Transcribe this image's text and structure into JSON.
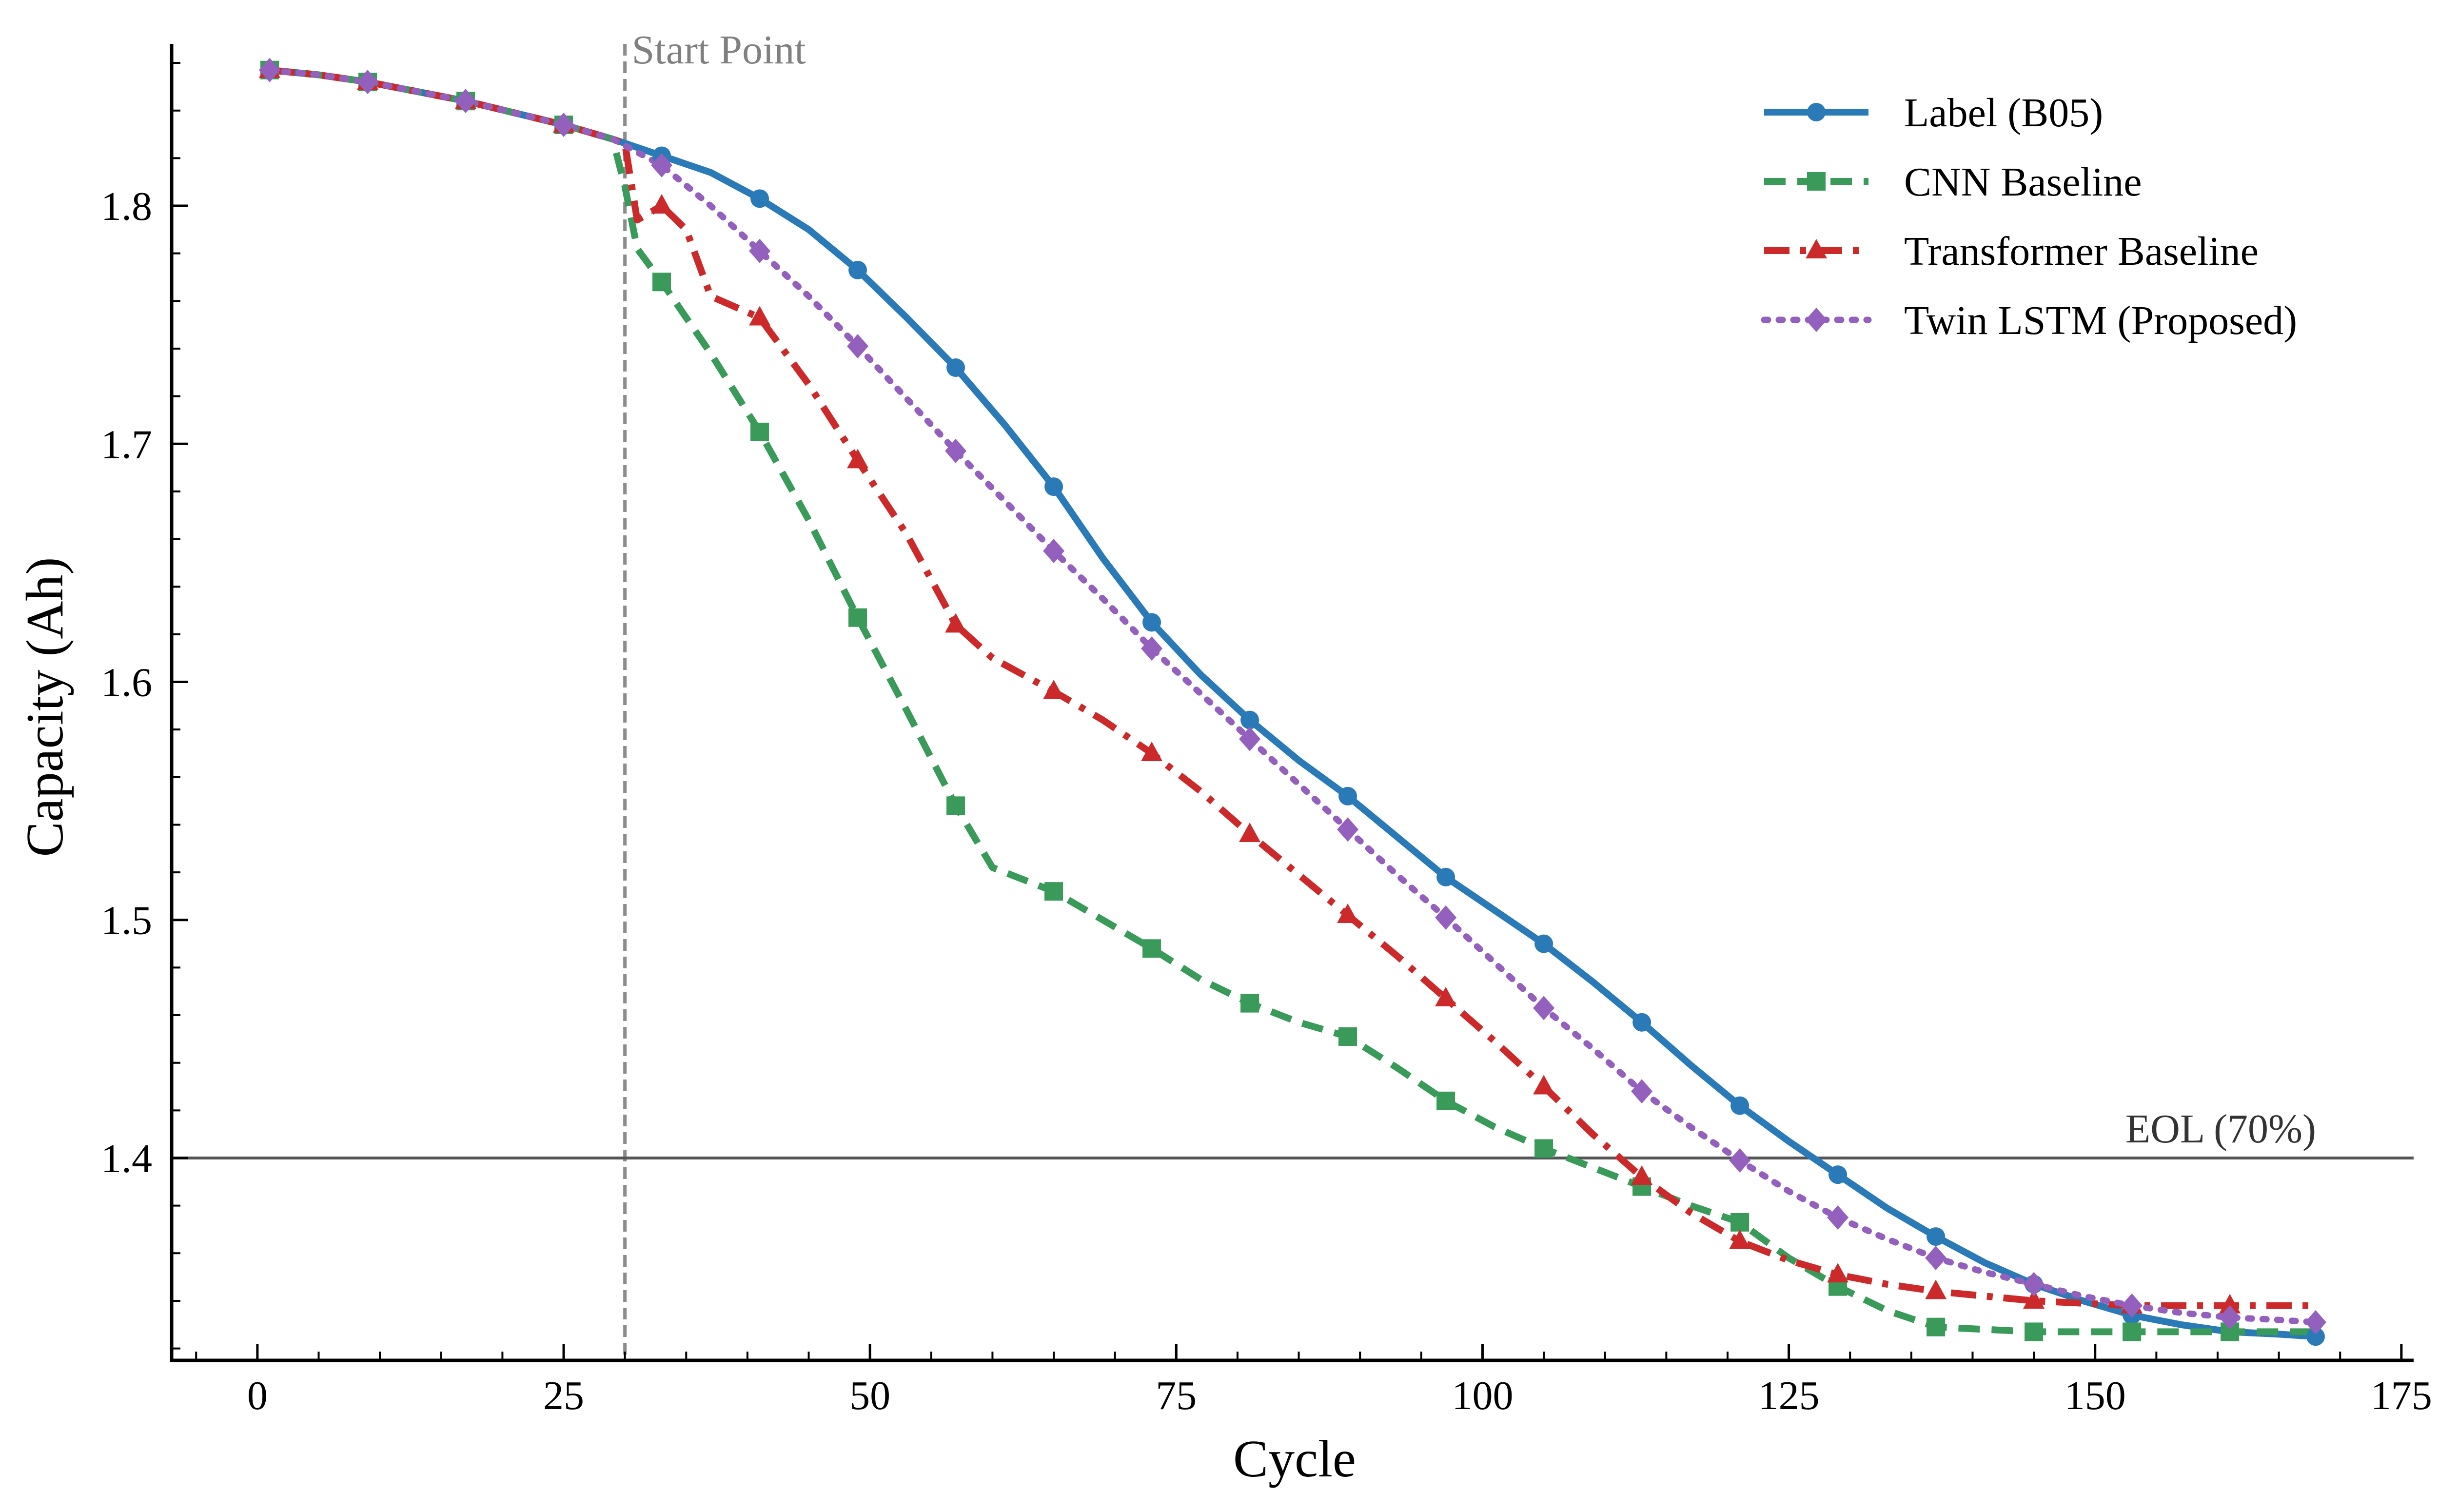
{
  "chart_data": {
    "type": "line",
    "title": "",
    "xlabel": "Cycle",
    "ylabel": "Capacity (Ah)",
    "xlim": [
      -7,
      176
    ],
    "ylim": [
      1.315,
      1.868
    ],
    "xticks": [
      0,
      25,
      50,
      75,
      100,
      125,
      150,
      175
    ],
    "yticks": [
      1.4,
      1.5,
      1.6,
      1.7,
      1.8
    ],
    "xtick_labels": [
      "0",
      "25",
      "50",
      "75",
      "100",
      "125",
      "150",
      "175"
    ],
    "ytick_labels": [
      "1.4",
      "1.5",
      "1.6",
      "1.7",
      "1.8"
    ],
    "grid": false,
    "legend_position": "top-right",
    "annotations": {
      "start_point": {
        "x": 30,
        "label": "Start Point"
      },
      "eol": {
        "y": 1.4,
        "label": "EOL (70%)"
      }
    },
    "series": [
      {
        "name": "Label (B05)",
        "color": "#2a7ab8",
        "dash": "solid",
        "marker": "circle",
        "x": [
          1,
          5,
          9,
          13,
          17,
          21,
          25,
          29,
          33,
          37,
          41,
          45,
          49,
          53,
          57,
          61,
          65,
          69,
          73,
          77,
          81,
          85,
          89,
          93,
          97,
          101,
          105,
          109,
          113,
          117,
          121,
          125,
          129,
          133,
          137,
          141,
          145,
          149,
          153,
          157,
          161,
          165,
          168
        ],
        "y": [
          1.857,
          1.855,
          1.852,
          1.848,
          1.844,
          1.839,
          1.834,
          1.828,
          1.821,
          1.814,
          1.803,
          1.79,
          1.773,
          1.753,
          1.732,
          1.708,
          1.682,
          1.652,
          1.625,
          1.603,
          1.584,
          1.567,
          1.552,
          1.535,
          1.518,
          1.504,
          1.49,
          1.474,
          1.457,
          1.439,
          1.422,
          1.407,
          1.393,
          1.379,
          1.367,
          1.356,
          1.347,
          1.34,
          1.334,
          1.33,
          1.327,
          1.326,
          1.325
        ],
        "marker_every": 2
      },
      {
        "name": "CNN Baseline",
        "color": "#3a9a5a",
        "dash": "dashed",
        "marker": "square",
        "x": [
          1,
          5,
          9,
          13,
          17,
          21,
          25,
          29,
          30,
          31,
          33,
          37,
          41,
          45,
          49,
          53,
          57,
          60,
          65,
          69,
          73,
          77,
          81,
          85,
          89,
          93,
          97,
          101,
          105,
          109,
          113,
          117,
          121,
          125,
          129,
          133,
          137,
          141,
          145,
          149,
          153,
          157,
          161,
          165,
          168
        ],
        "y": [
          1.857,
          1.855,
          1.852,
          1.848,
          1.844,
          1.839,
          1.834,
          1.828,
          1.808,
          1.782,
          1.768,
          1.738,
          1.705,
          1.668,
          1.627,
          1.588,
          1.548,
          1.522,
          1.512,
          1.5,
          1.488,
          1.475,
          1.465,
          1.457,
          1.451,
          1.438,
          1.424,
          1.413,
          1.404,
          1.396,
          1.388,
          1.38,
          1.373,
          1.358,
          1.346,
          1.336,
          1.329,
          1.328,
          1.327,
          1.327,
          1.327,
          1.327,
          1.327,
          1.327,
          1.327
        ],
        "marker_idx": [
          0,
          2,
          4,
          6,
          10,
          12,
          14,
          16,
          18,
          20,
          22,
          24,
          26,
          28,
          30,
          32,
          34,
          36,
          38,
          40,
          42
        ]
      },
      {
        "name": "Transformer Baseline",
        "color": "#cc2a2a",
        "dash": "dashdot",
        "marker": "triangle",
        "x": [
          1,
          5,
          9,
          13,
          17,
          21,
          25,
          29,
          30,
          31,
          33,
          35,
          37,
          41,
          45,
          49,
          53,
          57,
          60,
          65,
          69,
          73,
          77,
          81,
          85,
          89,
          93,
          97,
          101,
          105,
          109,
          113,
          117,
          121,
          125,
          129,
          133,
          137,
          141,
          145,
          149,
          153,
          157,
          161,
          165,
          168
        ],
        "y": [
          1.857,
          1.855,
          1.852,
          1.848,
          1.844,
          1.839,
          1.834,
          1.828,
          1.826,
          1.794,
          1.8,
          1.79,
          1.762,
          1.753,
          1.725,
          1.693,
          1.662,
          1.624,
          1.61,
          1.596,
          1.584,
          1.57,
          1.554,
          1.536,
          1.519,
          1.502,
          1.485,
          1.467,
          1.449,
          1.43,
          1.41,
          1.392,
          1.377,
          1.365,
          1.357,
          1.351,
          1.347,
          1.344,
          1.342,
          1.34,
          1.339,
          1.338,
          1.338,
          1.338,
          1.338,
          1.338
        ],
        "marker_idx": [
          0,
          2,
          4,
          6,
          10,
          13,
          15,
          17,
          19,
          21,
          23,
          25,
          27,
          29,
          31,
          33,
          35,
          37,
          39,
          41,
          43
        ]
      },
      {
        "name": "Twin LSTM (Proposed)",
        "color": "#9460bd",
        "dash": "dotted",
        "marker": "diamond",
        "x": [
          1,
          5,
          9,
          13,
          17,
          21,
          25,
          29,
          33,
          37,
          41,
          45,
          49,
          53,
          57,
          61,
          65,
          69,
          73,
          77,
          81,
          85,
          89,
          93,
          97,
          101,
          105,
          109,
          113,
          117,
          121,
          125,
          129,
          133,
          137,
          141,
          145,
          149,
          153,
          157,
          161,
          165,
          168
        ],
        "y": [
          1.857,
          1.855,
          1.852,
          1.848,
          1.844,
          1.839,
          1.834,
          1.828,
          1.817,
          1.8,
          1.781,
          1.762,
          1.741,
          1.719,
          1.697,
          1.676,
          1.655,
          1.635,
          1.614,
          1.595,
          1.576,
          1.557,
          1.538,
          1.519,
          1.501,
          1.482,
          1.463,
          1.446,
          1.428,
          1.413,
          1.399,
          1.386,
          1.375,
          1.366,
          1.358,
          1.352,
          1.347,
          1.342,
          1.338,
          1.335,
          1.333,
          1.332,
          1.331
        ],
        "marker_every": 2
      }
    ]
  }
}
